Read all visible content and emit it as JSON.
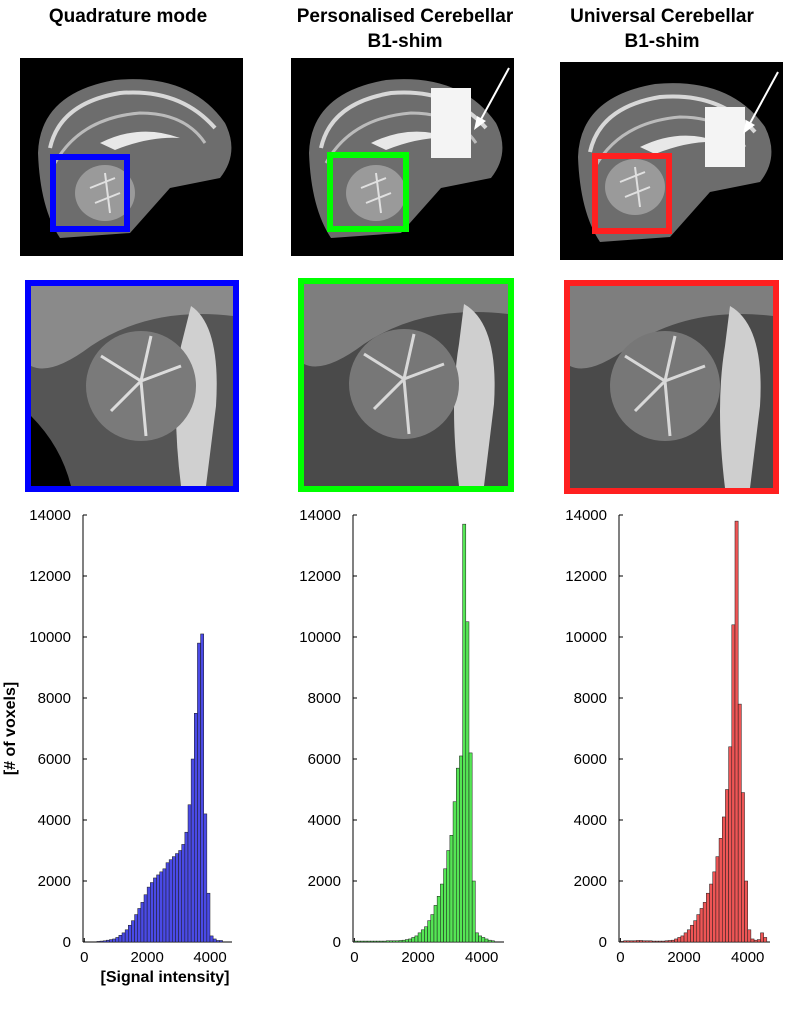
{
  "panels": [
    {
      "title": "Quadrature mode",
      "title_line2": "",
      "color": "#0000ff",
      "arrow": false
    },
    {
      "title": "Personalised Cerebellar",
      "title_line2": "B1-shim",
      "color": "#00ff00",
      "arrow": true
    },
    {
      "title": "Universal Cerebellar",
      "title_line2": "B1-shim",
      "color": "#ff2020",
      "arrow": true
    }
  ],
  "chart_data": [
    {
      "type": "bar",
      "xlabel": "[Signal intensity]",
      "ylabel": "[# of voxels]",
      "ylim": [
        0,
        14000
      ],
      "yticks": [
        "0",
        "2000",
        "4000",
        "6000",
        "8000",
        "10000",
        "12000",
        "14000"
      ],
      "xticks": [
        "0",
        "2000",
        "4000"
      ],
      "xlim": [
        -200,
        4700
      ],
      "bin_width": 100,
      "bar_color": "#4a4ae6",
      "series": [
        {
          "x_start": 400,
          "values": [
            20,
            30,
            40,
            60,
            80,
            100,
            150,
            220,
            300,
            400,
            550,
            700,
            900,
            1100,
            1300,
            1550,
            1800,
            1950,
            2100,
            2200,
            2300,
            2400,
            2600,
            2700,
            2800,
            2900,
            3000,
            3200,
            3600,
            4500,
            6000,
            7500,
            9800,
            10100,
            4200,
            1600,
            200,
            100,
            50,
            50
          ]
        }
      ]
    },
    {
      "type": "bar",
      "xlabel": "",
      "ylabel": "",
      "ylim": [
        0,
        14000
      ],
      "yticks": [
        "0",
        "2000",
        "4000",
        "6000",
        "8000",
        "10000",
        "12000",
        "14000"
      ],
      "xticks": [
        "0",
        "2000",
        "4000"
      ],
      "xlim": [
        -200,
        4700
      ],
      "bin_width": 100,
      "bar_color": "#55e655",
      "series": [
        {
          "x_start": 0,
          "values": [
            30,
            30,
            30,
            30,
            30,
            30,
            30,
            30,
            30,
            30,
            40,
            40,
            40,
            40,
            50,
            60,
            80,
            100,
            150,
            200,
            300,
            400,
            500,
            700,
            900,
            1200,
            1500,
            1900,
            2400,
            3000,
            3500,
            4600,
            5700,
            6100,
            13700,
            10500,
            6200,
            2000,
            300,
            200,
            150,
            100,
            60,
            40
          ]
        }
      ]
    },
    {
      "type": "bar",
      "xlabel": "",
      "ylabel": "",
      "ylim": [
        0,
        14000
      ],
      "yticks": [
        "0",
        "2000",
        "4000",
        "6000",
        "8000",
        "10000",
        "12000",
        "14000"
      ],
      "xticks": [
        "0",
        "2000",
        "4000"
      ],
      "xlim": [
        -200,
        4700
      ],
      "bin_width": 100,
      "bar_color": "#ee5555",
      "series": [
        {
          "x_start": 0,
          "values": [
            20,
            40,
            40,
            40,
            40,
            50,
            50,
            40,
            40,
            40,
            30,
            30,
            30,
            30,
            40,
            50,
            60,
            100,
            150,
            200,
            300,
            400,
            550,
            700,
            900,
            1100,
            1300,
            1600,
            1900,
            2300,
            2800,
            3400,
            4100,
            5000,
            6400,
            10400,
            13800,
            7800,
            4900,
            2000,
            400,
            100,
            60,
            80,
            300,
            150
          ]
        }
      ]
    }
  ]
}
